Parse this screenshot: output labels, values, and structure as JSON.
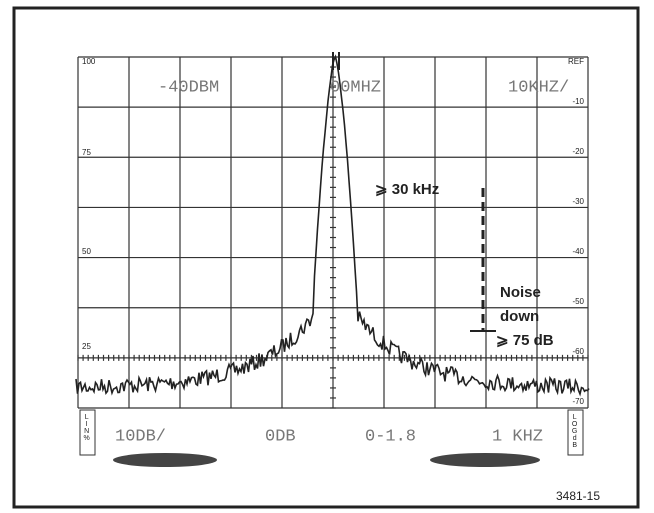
{
  "screen": {
    "left_scale": [
      "100",
      "75",
      "50",
      "25"
    ],
    "right_scale": [
      "REF",
      "-10",
      "-20",
      "-30",
      "-40",
      "-50",
      "-60",
      "-70"
    ],
    "readouts_top": [
      "-40DBM",
      "00MHZ",
      "10KHZ/"
    ],
    "readouts_bottom": [
      "10DB/",
      "0DB",
      "0-1.8",
      "1 KHZ"
    ],
    "mode_left": "LIN%",
    "mode_right": "LOGdB"
  },
  "annotations": {
    "span": "⩾ 30 kHz",
    "noise": [
      "Noise",
      "down",
      "⩾ 75 dB"
    ]
  },
  "figure_id": "3481-15"
}
